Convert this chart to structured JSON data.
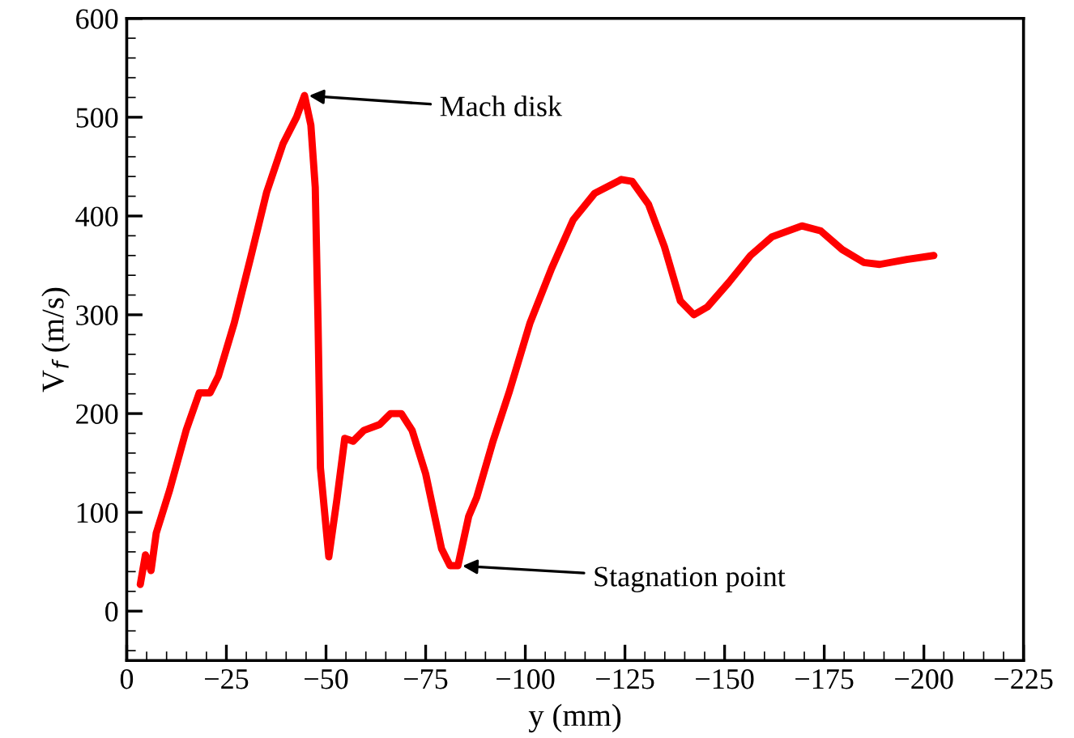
{
  "chart_data": {
    "type": "line",
    "xlabel": "y (mm)",
    "ylabel": "V$_{f}$ (m/s)",
    "xlim": [
      0,
      -225
    ],
    "ylim": [
      -50,
      600
    ],
    "xticks": [
      0,
      {
        "value": -25,
        "label": "−25"
      },
      {
        "value": -50,
        "label": "−50"
      },
      {
        "value": -75,
        "label": "−75"
      },
      {
        "value": -100,
        "label": "−100"
      },
      {
        "value": -125,
        "label": "−125"
      },
      {
        "value": -150,
        "label": "−150"
      },
      {
        "value": -175,
        "label": "−175"
      },
      {
        "value": -200,
        "label": "−200"
      },
      {
        "value": -225,
        "label": "−225"
      }
    ],
    "yticks": [
      0,
      100,
      200,
      300,
      400,
      500,
      600
    ],
    "grid": false,
    "legend": false,
    "marker": "none",
    "line_style": "solid",
    "series": [
      {
        "color": "#ff0000",
        "x": [
          -3.4,
          -4.7,
          -6.1,
          -7.4,
          -10.8,
          -14.9,
          -18.2,
          -20.9,
          -23,
          -27,
          -31.1,
          -35.1,
          -39.2,
          -42.6,
          -44.6,
          -46.2,
          -47.3,
          -48,
          -48.6,
          -50.7,
          -52.7,
          -54.7,
          -56.8,
          -59.5,
          -63.5,
          -66.2,
          -68.9,
          -71.6,
          -75,
          -79,
          -81.1,
          -83.1,
          -85.8,
          -87.8,
          -91.9,
          -95.9,
          -101.2,
          -106.6,
          -112,
          -117.4,
          -124.1,
          -126.8,
          -130.9,
          -134.9,
          -138.9,
          -142.3,
          -145.7,
          -151.1,
          -156.5,
          -161.9,
          -169.4,
          -174.1,
          -179.5,
          -184.9,
          -188.9,
          -195.7,
          -202.5
        ],
        "values": [
          27,
          57,
          41,
          79,
          123,
          183,
          221,
          221,
          238,
          292,
          358,
          424,
          473,
          500,
          522,
          492,
          429,
          292,
          145,
          55,
          112,
          175,
          172,
          183,
          189,
          200,
          200,
          183,
          139,
          63,
          46,
          46,
          96,
          115,
          172,
          221,
          292,
          347,
          396,
          423,
          437,
          435,
          412,
          369,
          314,
          300,
          308,
          333,
          360,
          379,
          390,
          385,
          366,
          353,
          351,
          356,
          360
        ]
      }
    ],
    "annotations": [
      {
        "text": "Mach disk",
        "x": -44.6,
        "y": 522
      },
      {
        "text": "Stagnation point",
        "x": -83.1,
        "y": 46
      }
    ]
  }
}
